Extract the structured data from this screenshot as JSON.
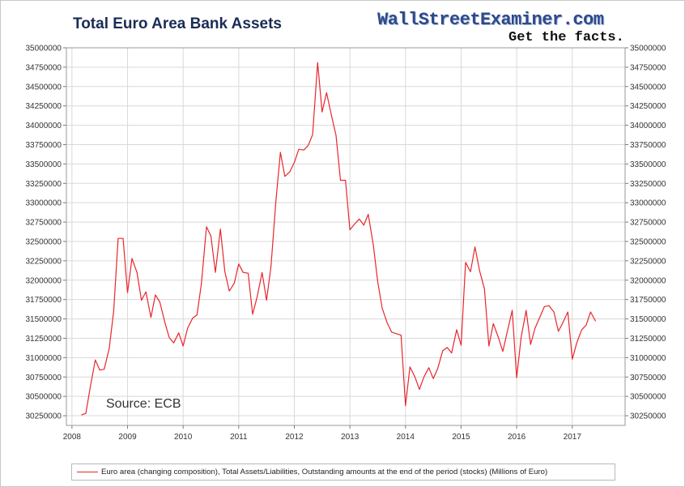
{
  "header": {
    "title": "Total Euro Area Bank Assets",
    "brand_name": "WallStreetExaminer.com",
    "brand_tagline": "Get the facts."
  },
  "annotation": {
    "source": "Source: ECB"
  },
  "chart_data": {
    "type": "line",
    "title": "Total Euro Area Bank Assets",
    "xlabel": "",
    "ylabel": "",
    "xlim": [
      2007.9,
      2017.95
    ],
    "ylim": [
      30125000,
      35000000
    ],
    "x_ticks": [
      2008,
      2009,
      2010,
      2011,
      2012,
      2013,
      2014,
      2015,
      2016,
      2017
    ],
    "y_ticks": [
      30250000,
      30500000,
      30750000,
      31000000,
      31250000,
      31500000,
      31750000,
      32000000,
      32250000,
      32500000,
      32750000,
      33000000,
      33250000,
      33500000,
      33750000,
      34000000,
      34250000,
      34500000,
      34750000,
      35000000
    ],
    "grid": true,
    "legend_position": "bottom",
    "series": [
      {
        "name": "Euro area (changing composition), Total Assets/Liabilities, Outstanding amounts at the end of the period (stocks) (Millions of Euro)",
        "color": "#e8262d",
        "x": [
          2008.17,
          2008.25,
          2008.33,
          2008.42,
          2008.5,
          2008.58,
          2008.67,
          2008.75,
          2008.83,
          2008.92,
          2009.0,
          2009.08,
          2009.17,
          2009.25,
          2009.33,
          2009.42,
          2009.5,
          2009.58,
          2009.67,
          2009.75,
          2009.83,
          2009.92,
          2010.0,
          2010.08,
          2010.17,
          2010.25,
          2010.33,
          2010.42,
          2010.5,
          2010.58,
          2010.67,
          2010.75,
          2010.83,
          2010.92,
          2011.0,
          2011.08,
          2011.17,
          2011.25,
          2011.33,
          2011.42,
          2011.5,
          2011.58,
          2011.67,
          2011.75,
          2011.83,
          2011.92,
          2012.0,
          2012.08,
          2012.17,
          2012.25,
          2012.33,
          2012.42,
          2012.5,
          2012.58,
          2012.67,
          2012.75,
          2012.83,
          2012.92,
          2013.0,
          2013.08,
          2013.17,
          2013.25,
          2013.33,
          2013.42,
          2013.5,
          2013.58,
          2013.67,
          2013.75,
          2013.83,
          2013.92,
          2014.0,
          2014.08,
          2014.17,
          2014.25,
          2014.33,
          2014.42,
          2014.5,
          2014.58,
          2014.67,
          2014.75,
          2014.83,
          2014.92,
          2015.0,
          2015.08,
          2015.17,
          2015.25,
          2015.33,
          2015.42,
          2015.5,
          2015.58,
          2015.67,
          2015.75,
          2015.83,
          2015.92,
          2016.0,
          2016.08,
          2016.17,
          2016.25,
          2016.33,
          2016.42,
          2016.5,
          2016.58,
          2016.67,
          2016.75,
          2016.83,
          2016.92,
          2017.0,
          2017.08,
          2017.17,
          2017.25,
          2017.33,
          2017.42
        ],
        "values": [
          30260000,
          30280000,
          30620000,
          30970000,
          30840000,
          30850000,
          31120000,
          31600000,
          32540000,
          32540000,
          31840000,
          32280000,
          32100000,
          31740000,
          31850000,
          31520000,
          31810000,
          31720000,
          31460000,
          31260000,
          31190000,
          31320000,
          31150000,
          31380000,
          31510000,
          31550000,
          31960000,
          32690000,
          32570000,
          32100000,
          32660000,
          32110000,
          31860000,
          31960000,
          32210000,
          32100000,
          32090000,
          31560000,
          31780000,
          32100000,
          31740000,
          32180000,
          33030000,
          33650000,
          33340000,
          33400000,
          33520000,
          33690000,
          33680000,
          33740000,
          33880000,
          34810000,
          34170000,
          34420000,
          34120000,
          33870000,
          33290000,
          33290000,
          32650000,
          32720000,
          32790000,
          32710000,
          32850000,
          32460000,
          31980000,
          31640000,
          31450000,
          31330000,
          31310000,
          31290000,
          30380000,
          30880000,
          30750000,
          30590000,
          30750000,
          30870000,
          30730000,
          30860000,
          31090000,
          31130000,
          31060000,
          31360000,
          31160000,
          32230000,
          32110000,
          32430000,
          32130000,
          31890000,
          31150000,
          31440000,
          31260000,
          31080000,
          31330000,
          31610000,
          30740000,
          31260000,
          31610000,
          31170000,
          31380000,
          31530000,
          31660000,
          31670000,
          31590000,
          31340000,
          31450000,
          31590000,
          30980000,
          31190000,
          31360000,
          31420000,
          31590000,
          31470000
        ]
      }
    ]
  }
}
